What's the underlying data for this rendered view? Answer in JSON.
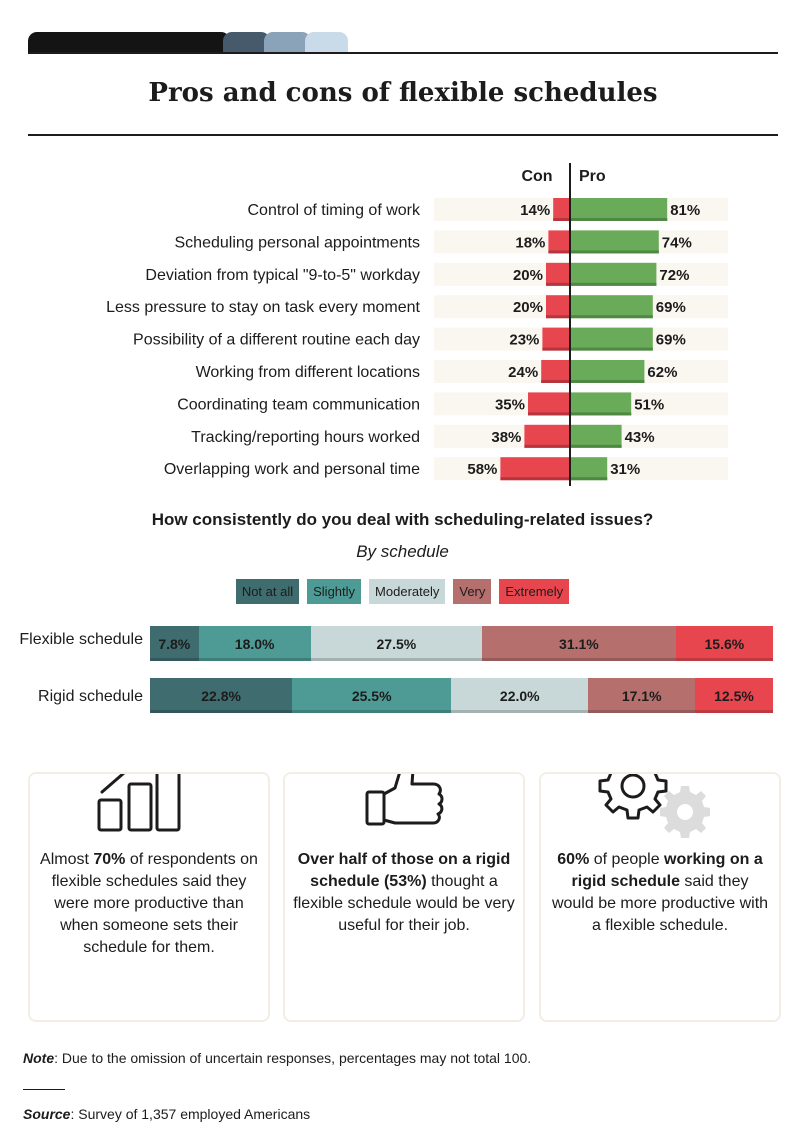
{
  "title": "Pros and cons of flexible schedules",
  "header_bar_colors": [
    "#141414",
    "#465a6c",
    "#8aa3b8",
    "#c9dbe9"
  ],
  "chart_data": [
    {
      "type": "bar",
      "subtype": "diverging-horizontal",
      "series": [
        {
          "name": "Con",
          "color": "#e8464f",
          "values": [
            14,
            18,
            20,
            20,
            23,
            24,
            35,
            38,
            58
          ]
        },
        {
          "name": "Pro",
          "color": "#6aab5a",
          "values": [
            81,
            74,
            72,
            69,
            69,
            62,
            51,
            43,
            31
          ]
        }
      ],
      "categories": [
        "Control of timing of work",
        "Scheduling personal appointments",
        "Deviation from typical \"9-to-5\" workday",
        "Less pressure to stay on task every moment",
        "Possibility of a different routine each day",
        "Working from different locations",
        "Coordinating team communication",
        "Tracking/reporting hours worked",
        "Overlapping work and personal time"
      ],
      "con_label": "Con",
      "pro_label": "Pro",
      "unit": "%"
    },
    {
      "type": "bar",
      "subtype": "stacked-horizontal-100",
      "title": "How consistently do you deal with scheduling-related issues?",
      "subtitle": "By schedule",
      "legend": [
        {
          "label": "Not at all",
          "color": "#3f6c6f"
        },
        {
          "label": "Slightly",
          "color": "#4e9b95"
        },
        {
          "label": "Moderately",
          "color": "#c8d8d8"
        },
        {
          "label": "Very",
          "color": "#b5706e"
        },
        {
          "label": "Extremely",
          "color": "#e8464f"
        }
      ],
      "rows": [
        {
          "label": "Flexible schedule",
          "values": [
            7.8,
            18.0,
            27.5,
            31.1,
            15.6
          ],
          "value_labels": [
            "7.8%",
            "18.0%",
            "27.5%",
            "31.1%",
            "15.6%"
          ]
        },
        {
          "label": "Rigid schedule",
          "values": [
            22.8,
            25.5,
            22.0,
            17.1,
            12.5
          ],
          "value_labels": [
            "22.8%",
            "25.5%",
            "22.0%",
            "17.1%",
            "12.5%"
          ]
        }
      ]
    }
  ],
  "cards": [
    {
      "icon": "bar-growth-icon",
      "html": "Almost <b>70%</b> of respondents on flexible schedules said they were more productive than when someone sets their schedule for them."
    },
    {
      "icon": "thumbs-up-icon",
      "html": "<b>Over half of those on a rigid schedule (53%)</b> thought a flexible schedule would be very useful for their job."
    },
    {
      "icon": "gears-icon",
      "html": "<b>60%</b> of people <b>working on a rigid schedule</b> said they would be more productive with a flexible schedule."
    }
  ],
  "note": {
    "label": "Note",
    "text": ": Due to the omission of uncertain responses, percentages may not total 100."
  },
  "source": {
    "label": "Source",
    "text": ": Survey of 1,357 employed Americans"
  }
}
